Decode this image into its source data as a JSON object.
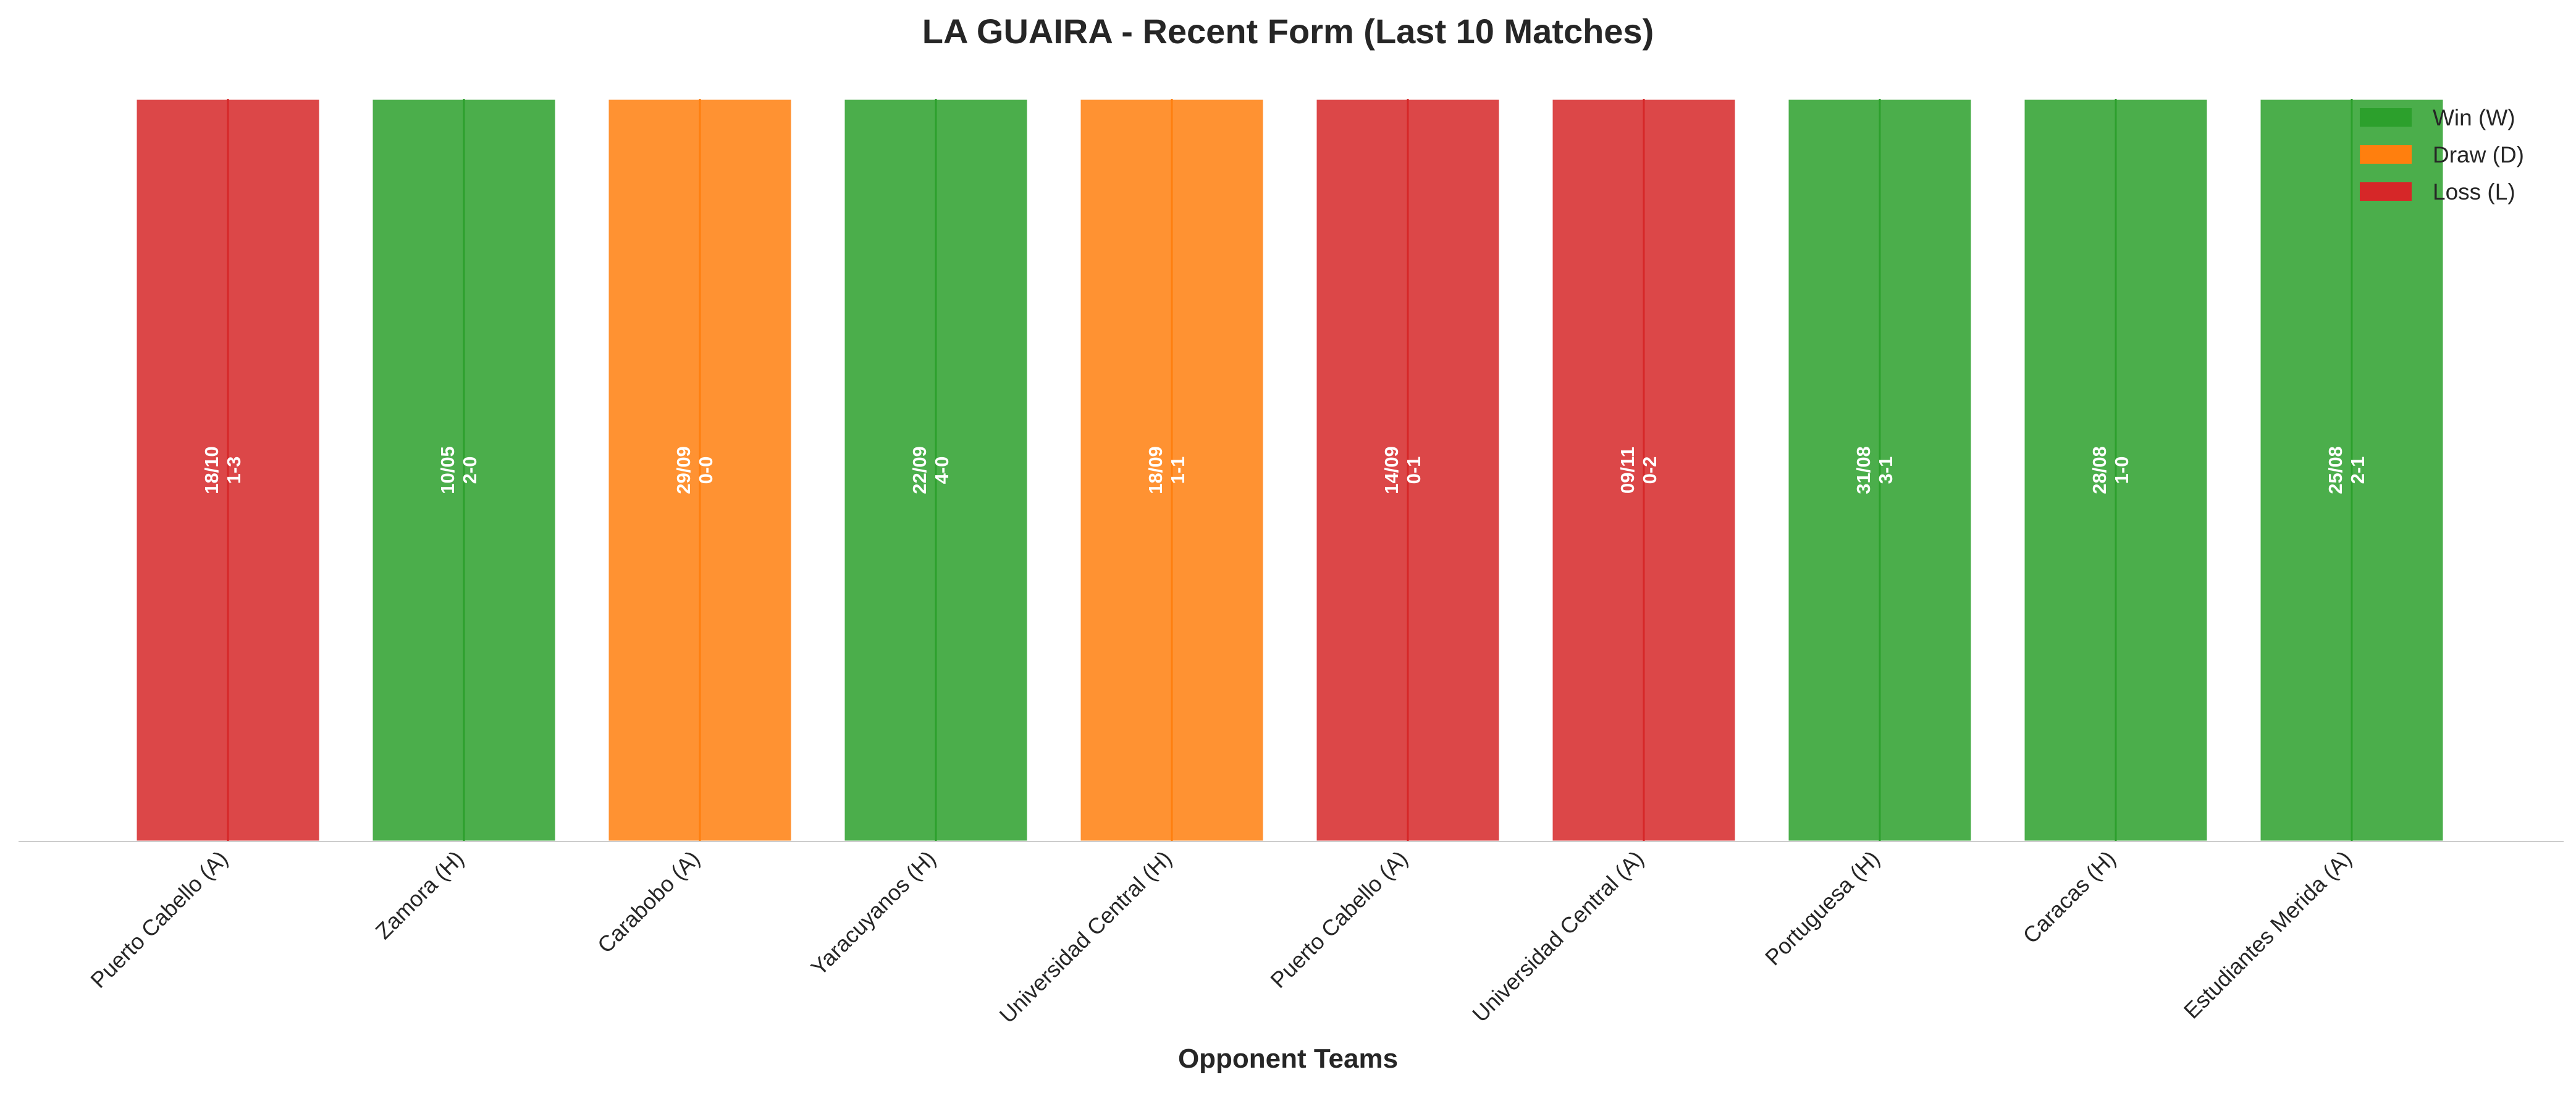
{
  "chart_data": {
    "type": "bar",
    "title": "LA GUAIRA - Recent Form (Last 10 Matches)",
    "xlabel": "Opponent Teams",
    "ylabel": "",
    "ylim": [
      0,
      1
    ],
    "grid": false,
    "legend_placement": "top-right",
    "categories": [
      "Puerto Cabello (A)",
      "Zamora (H)",
      "Carabobo (A)",
      "Yaracuyanos (H)",
      "Universidad Central (H)",
      "Puerto Cabello (A)",
      "Universidad Central (A)",
      "Portuguesa (H)",
      "Caracas (H)",
      "Estudiantes Merida (A)"
    ],
    "values": [
      1,
      1,
      1,
      1,
      1,
      1,
      1,
      1,
      1,
      1
    ],
    "results": [
      "L",
      "W",
      "D",
      "W",
      "D",
      "L",
      "L",
      "W",
      "W",
      "W"
    ],
    "dates": [
      "18/10",
      "10/05",
      "29/09",
      "22/09",
      "18/09",
      "14/09",
      "09/11",
      "31/08",
      "28/08",
      "25/08"
    ],
    "scores": [
      "1-3",
      "2-0",
      "0-0",
      "4-0",
      "1-1",
      "0-1",
      "0-2",
      "3-1",
      "1-0",
      "2-1"
    ],
    "legend": [
      {
        "key": "W",
        "label": "Win (W)",
        "color": "#2ca02c"
      },
      {
        "key": "D",
        "label": "Draw (D)",
        "color": "#ff7f0e"
      },
      {
        "key": "L",
        "label": "Loss (L)",
        "color": "#d62728"
      }
    ]
  }
}
